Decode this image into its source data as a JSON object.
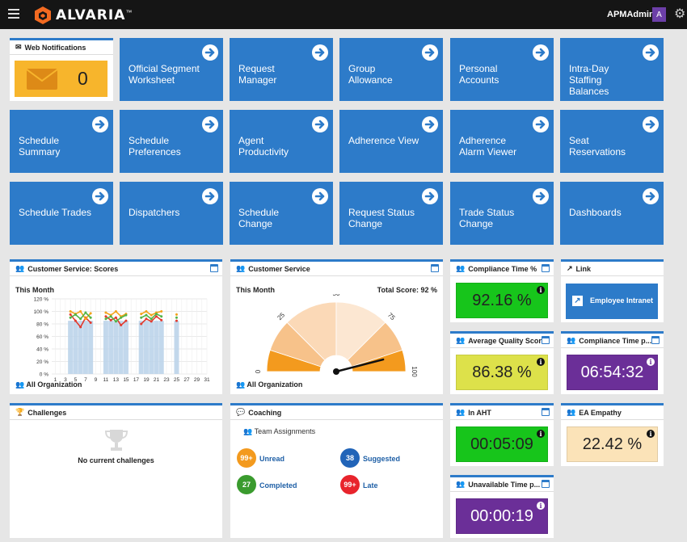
{
  "app": {
    "brand": "ALVARIA",
    "trademark": "™"
  },
  "header": {
    "user": "APMAdmin",
    "avatar_initial": "A"
  },
  "notifications": {
    "title": "Web Notifications",
    "count": "0"
  },
  "tiles": [
    {
      "label": "Official Segment\nWorksheet"
    },
    {
      "label": "Request\nManager"
    },
    {
      "label": "Group\nAllowance"
    },
    {
      "label": "Personal\nAccounts"
    },
    {
      "label": "Intra-Day\nStaffing\nBalances"
    },
    {
      "label": "Schedule\nSummary"
    },
    {
      "label": "Schedule\nPreferences"
    },
    {
      "label": "Agent\nProductivity"
    },
    {
      "label": "Adherence View"
    },
    {
      "label": "Adherence\nAlarm Viewer"
    },
    {
      "label": "Seat\nReservations"
    },
    {
      "label": "Schedule Trades"
    },
    {
      "label": "Dispatchers"
    },
    {
      "label": "Schedule\nChange"
    },
    {
      "label": "Request Status\nChange"
    },
    {
      "label": "Trade Status\nChange"
    },
    {
      "label": "Dashboards"
    }
  ],
  "scores": {
    "title": "Customer Service: Scores",
    "period": "This Month",
    "footer": "All Organization",
    "y_ticks": [
      "120 %",
      "100 %",
      "80 %",
      "60 %",
      "40 %",
      "20 %",
      "0 %"
    ],
    "x_ticks": [
      "1",
      "3",
      "5",
      "7",
      "9",
      "11",
      "13",
      "15",
      "17",
      "19",
      "21",
      "23",
      "25",
      "27",
      "29",
      "31"
    ]
  },
  "chart_data": {
    "type": "line",
    "title": "Customer Service: Scores",
    "ylim": [
      0,
      120
    ],
    "xlim": [
      0,
      31
    ],
    "bars": {
      "days": [
        4,
        5,
        6,
        7,
        8,
        11,
        12,
        13,
        14,
        15,
        18,
        19,
        20,
        21,
        22,
        25
      ],
      "values": [
        100,
        100,
        100,
        100,
        100,
        100,
        100,
        100,
        100,
        100,
        100,
        100,
        100,
        100,
        100,
        100
      ]
    },
    "series": [
      {
        "color": "#e23b2f",
        "x": [
          4,
          5,
          6,
          7,
          8
        ],
        "y": [
          95,
          85,
          75,
          90,
          82
        ]
      },
      {
        "color": "#f2a31c",
        "x": [
          4,
          5,
          6,
          7,
          8
        ],
        "y": [
          100,
          96,
          100,
          88,
          97
        ]
      },
      {
        "color": "#52b447",
        "x": [
          4,
          5,
          6,
          7,
          8
        ],
        "y": [
          90,
          95,
          88,
          98,
          90
        ]
      },
      {
        "color": "#e23b2f",
        "x": [
          11,
          12,
          13,
          14,
          15
        ],
        "y": [
          92,
          86,
          90,
          78,
          85
        ]
      },
      {
        "color": "#f2a31c",
        "x": [
          11,
          12,
          13,
          14,
          15
        ],
        "y": [
          98,
          94,
          100,
          92,
          96
        ]
      },
      {
        "color": "#52b447",
        "x": [
          11,
          12,
          13,
          14,
          15
        ],
        "y": [
          88,
          92,
          84,
          90,
          94
        ]
      },
      {
        "color": "#e23b2f",
        "x": [
          18,
          19,
          20,
          21,
          22
        ],
        "y": [
          80,
          88,
          84,
          92,
          86
        ]
      },
      {
        "color": "#f2a31c",
        "x": [
          18,
          19,
          20,
          21,
          22
        ],
        "y": [
          96,
          100,
          94,
          98,
          100
        ]
      },
      {
        "color": "#52b447",
        "x": [
          18,
          19,
          20,
          21,
          22
        ],
        "y": [
          90,
          94,
          88,
          96,
          92
        ]
      },
      {
        "color": "#e23b2f",
        "x": [
          25
        ],
        "y": [
          85
        ]
      },
      {
        "color": "#f2a31c",
        "x": [
          25
        ],
        "y": [
          95
        ]
      },
      {
        "color": "#52b447",
        "x": [
          25
        ],
        "y": [
          90
        ]
      }
    ]
  },
  "gauge": {
    "title": "Customer Service",
    "period": "This Month",
    "total_score": "Total Score: 92 %",
    "ticks": [
      "0",
      "25",
      "50",
      "75",
      "100"
    ],
    "value": 92,
    "footer": "All Organization"
  },
  "kpis": {
    "compliance_pct": {
      "title": "Compliance Time %",
      "value": "92.16 %",
      "color": "#17c51b"
    },
    "avg_quality": {
      "title": "Average Quality Scor",
      "value": "86.38 %",
      "color": "#dde14a"
    },
    "compliance_time": {
      "title": "Compliance Time p...",
      "value": "06:54:32",
      "color": "#6b2f98"
    },
    "in_aht": {
      "title": "In AHT",
      "value": "00:05:09",
      "color": "#17c51b"
    },
    "ea_empathy": {
      "title": "EA Empathy",
      "value": "22.42 %",
      "color": "#fbe3b8"
    },
    "unavailable": {
      "title": "Unavailable Time p...",
      "value": "00:00:19",
      "color": "#6b2f98"
    }
  },
  "link": {
    "title": "Link",
    "button": "Employee Intranet"
  },
  "challenges": {
    "title": "Challenges",
    "empty": "No current challenges"
  },
  "coaching": {
    "title": "Coaching",
    "section": "Team Assignments",
    "items": [
      {
        "count": "99+",
        "label": "Unread",
        "color": "#f39a1e"
      },
      {
        "count": "38",
        "label": "Suggested",
        "color": "#2164b8"
      },
      {
        "count": "27",
        "label": "Completed",
        "color": "#3a9b2e"
      },
      {
        "count": "99+",
        "label": "Late",
        "color": "#e8242c"
      }
    ]
  }
}
